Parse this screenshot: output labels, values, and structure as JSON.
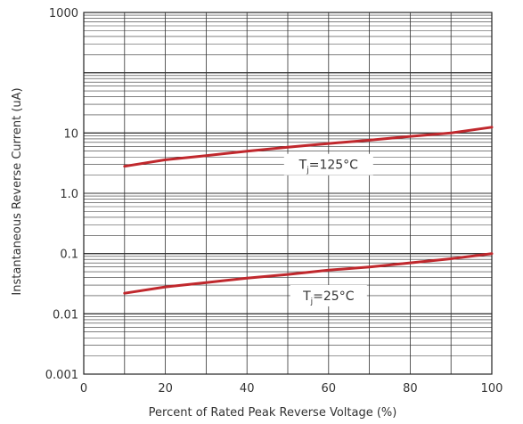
{
  "chart_data": {
    "type": "line",
    "title": "",
    "xlabel": "Percent of Rated Peak Reverse Voltage (%)",
    "ylabel": "Instantaneous Reverse Current (uA)",
    "xscale": "linear",
    "yscale": "log",
    "xlim": [
      0,
      100
    ],
    "ylim": [
      0.001,
      1000
    ],
    "x_ticks": [
      0,
      20,
      40,
      60,
      80,
      100
    ],
    "x_tick_labels": [
      "0",
      "20",
      "40",
      "60",
      "80",
      "100"
    ],
    "y_ticks": [
      0.001,
      0.01,
      0.1,
      1,
      10,
      1000
    ],
    "y_tick_labels": [
      "0.001",
      "0.01",
      "0.1",
      "1.0",
      "10",
      "1000"
    ],
    "grid": true,
    "series": [
      {
        "name": "Tj=125°C",
        "label_main": "T",
        "label_sub": "j",
        "label_rest": "=125°C",
        "label_at": {
          "x": 60,
          "y": 3.0
        },
        "color": "#c0282d",
        "x": [
          10,
          20,
          30,
          40,
          50,
          60,
          70,
          80,
          90,
          100
        ],
        "y": [
          2.8,
          3.6,
          4.2,
          5.0,
          5.8,
          6.7,
          7.6,
          8.8,
          10.0,
          12.5
        ]
      },
      {
        "name": "Tj=25°C",
        "label_main": "T",
        "label_sub": "j",
        "label_rest": "=25°C",
        "label_at": {
          "x": 60,
          "y": 0.02
        },
        "color": "#c0282d",
        "x": [
          10,
          20,
          30,
          40,
          50,
          60,
          70,
          80,
          90,
          100
        ],
        "y": [
          0.022,
          0.028,
          0.033,
          0.039,
          0.045,
          0.053,
          0.06,
          0.07,
          0.082,
          0.1
        ]
      }
    ]
  }
}
